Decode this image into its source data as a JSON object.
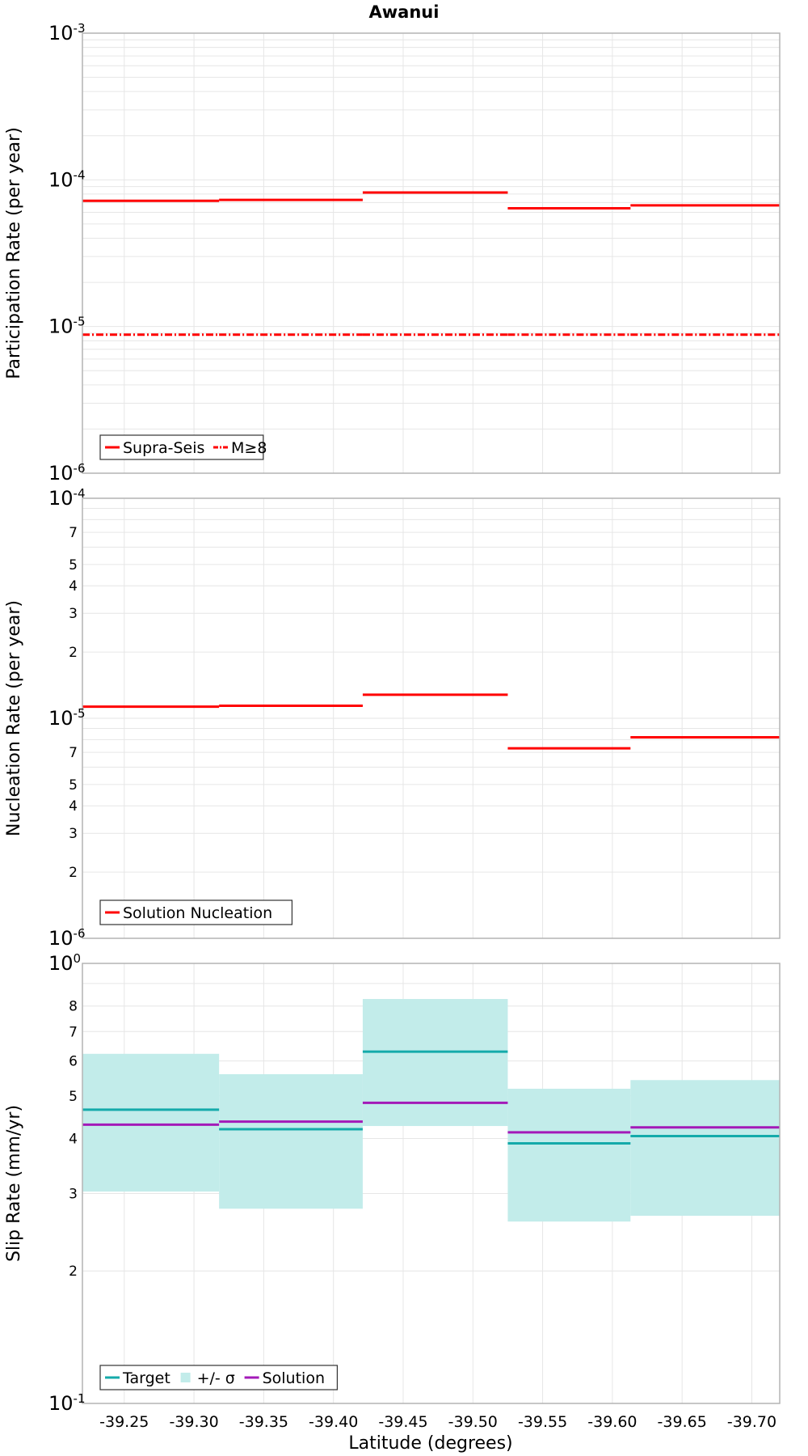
{
  "title": "Awanui",
  "xlabel": "Latitude (degrees)",
  "x_ticks": [
    "-39.25",
    "-39.30",
    "-39.35",
    "-39.40",
    "-39.45",
    "-39.50",
    "-39.55",
    "-39.60",
    "-39.65",
    "-39.70"
  ],
  "colors": {
    "red": "#ff0000",
    "target": "#14aaaa",
    "sigma_fill": "#c2ecea",
    "solution": "#a31ab8",
    "grid": "#e6e6e6",
    "frame": "#b4b4b4"
  },
  "chart_data": [
    {
      "type": "line",
      "step": true,
      "log_y": true,
      "ylabel": "Participation Rate (per year)",
      "xlim": [
        -39.22,
        -39.72
      ],
      "ylim": [
        1e-06,
        0.001
      ],
      "y_major_ticks": [
        {
          "value": 0.001,
          "base": "10",
          "exp": "-3"
        },
        {
          "value": 0.0001,
          "base": "10",
          "exp": "-4"
        },
        {
          "value": 1e-05,
          "base": "10",
          "exp": "-5"
        },
        {
          "value": 1e-06,
          "base": "10",
          "exp": "-6"
        }
      ],
      "y_minor_ticks": [],
      "segment_edges": [
        -39.22,
        -39.318,
        -39.421,
        -39.525,
        -39.613,
        -39.72
      ],
      "series": [
        {
          "name": "Supra-Seis",
          "style": "solid",
          "values": [
            7.2e-05,
            7.3e-05,
            8.2e-05,
            6.4e-05,
            6.7e-05
          ]
        },
        {
          "name": "M≥8",
          "style": "dashdot",
          "values": [
            8.8e-06,
            8.8e-06,
            8.8e-06,
            8.8e-06,
            8.8e-06
          ]
        }
      ],
      "legend": {
        "placement": "bottom-left"
      }
    },
    {
      "type": "line",
      "step": true,
      "log_y": true,
      "ylabel": "Nucleation Rate (per year)",
      "xlim": [
        -39.22,
        -39.72
      ],
      "ylim": [
        1e-06,
        0.0001
      ],
      "y_major_ticks": [
        {
          "value": 0.0001,
          "base": "10",
          "exp": "-4"
        },
        {
          "value": 1e-05,
          "base": "10",
          "exp": "-5"
        },
        {
          "value": 1e-06,
          "base": "10",
          "exp": "-6"
        }
      ],
      "y_minor_ticks": [
        {
          "value": 7e-05,
          "label": "7"
        },
        {
          "value": 5e-05,
          "label": "5"
        },
        {
          "value": 4e-05,
          "label": "4"
        },
        {
          "value": 3e-05,
          "label": "3"
        },
        {
          "value": 2e-05,
          "label": "2"
        },
        {
          "value": 7e-06,
          "label": "7"
        },
        {
          "value": 5e-06,
          "label": "5"
        },
        {
          "value": 4e-06,
          "label": "4"
        },
        {
          "value": 3e-06,
          "label": "3"
        },
        {
          "value": 2e-06,
          "label": "2"
        }
      ],
      "segment_edges": [
        -39.22,
        -39.318,
        -39.421,
        -39.525,
        -39.613,
        -39.72
      ],
      "series": [
        {
          "name": "Solution Nucleation",
          "style": "solid",
          "values": [
            1.13e-05,
            1.14e-05,
            1.28e-05,
            7.3e-06,
            8.2e-06
          ]
        }
      ],
      "legend": {
        "placement": "bottom-left"
      }
    },
    {
      "type": "line",
      "step": true,
      "log_y": true,
      "ylabel": "Slip Rate (mm/yr)",
      "xlim": [
        -39.22,
        -39.72
      ],
      "ylim": [
        0.1,
        1
      ],
      "y_major_ticks": [
        {
          "value": 1,
          "base": "10",
          "exp": "0"
        },
        {
          "value": 0.1,
          "base": "10",
          "exp": "-1"
        }
      ],
      "y_minor_ticks": [
        {
          "value": 0.8,
          "label": "8"
        },
        {
          "value": 0.7,
          "label": "7"
        },
        {
          "value": 0.6,
          "label": "6"
        },
        {
          "value": 0.5,
          "label": "5"
        },
        {
          "value": 0.4,
          "label": "4"
        },
        {
          "value": 0.3,
          "label": "3"
        },
        {
          "value": 0.2,
          "label": "2"
        }
      ],
      "segment_edges": [
        -39.22,
        -39.318,
        -39.421,
        -39.525,
        -39.613,
        -39.72
      ],
      "series": [
        {
          "name": "Target",
          "style": "solid",
          "values": [
            0.465,
            0.42,
            0.63,
            0.39,
            0.405
          ]
        },
        {
          "name": "+/- σ",
          "style": "band",
          "lower": [
            0.303,
            0.277,
            0.427,
            0.259,
            0.267
          ],
          "upper": [
            0.623,
            0.56,
            0.83,
            0.519,
            0.543
          ]
        },
        {
          "name": "Solution",
          "style": "solid",
          "values": [
            0.43,
            0.437,
            0.482,
            0.413,
            0.424
          ]
        }
      ],
      "legend": {
        "placement": "bottom-left"
      }
    }
  ]
}
